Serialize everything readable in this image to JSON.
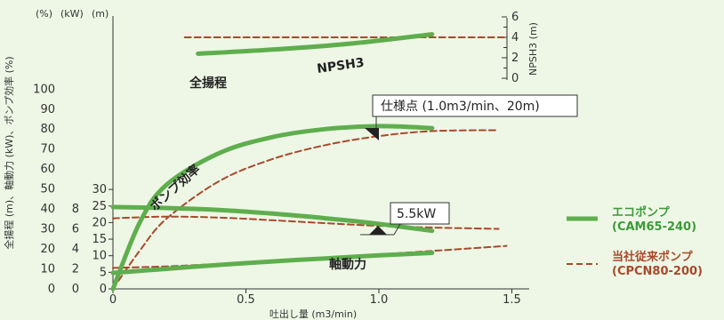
{
  "chart_data": {
    "type": "line",
    "xlabel": "吐出し量 (m3/min)",
    "x_ticks": [
      "0",
      "0.5",
      "1.0",
      "1.5"
    ],
    "xlim": [
      0,
      1.5
    ],
    "axis_units": {
      "pct": "(%)",
      "kw": "(kW)",
      "m": "(m)"
    },
    "y_axis_title": "全揚程 (m)、軸動力 (kW)、ポンプ効率 (%)",
    "y_pct_ticks": [
      "0",
      "10",
      "20",
      "30",
      "40",
      "50",
      "60",
      "70",
      "80",
      "90",
      "100"
    ],
    "y_kw_ticks": [
      "0",
      "2",
      "4",
      "6",
      "8"
    ],
    "y_m_ticks": [
      "0",
      "5",
      "10",
      "15",
      "20",
      "25",
      "30"
    ],
    "right_axis": {
      "label": "NPSH3 (m)",
      "ticks": [
        "0",
        "2",
        "4",
        "6"
      ]
    },
    "curve_labels": {
      "head": "全揚程",
      "efficiency": "ポンプ効率",
      "power": "軸動力",
      "npsh": "NPSH3"
    },
    "series": [
      {
        "name": "エコポンプ",
        "sub": "(CAM65-240)",
        "color": "#5fae4e",
        "style": "solid",
        "head_m": [
          [
            0,
            24.7
          ],
          [
            0.2,
            24.4
          ],
          [
            0.4,
            23.8
          ],
          [
            0.6,
            22.7
          ],
          [
            0.8,
            21.3
          ],
          [
            1.0,
            19.6
          ],
          [
            1.2,
            17.5
          ]
        ],
        "efficiency_pct": [
          [
            0,
            0
          ],
          [
            0.1,
            33
          ],
          [
            0.2,
            52
          ],
          [
            0.4,
            68
          ],
          [
            0.6,
            76
          ],
          [
            0.8,
            80
          ],
          [
            1.0,
            81.5
          ],
          [
            1.2,
            80.5
          ]
        ],
        "power_kw": [
          [
            0,
            1.6
          ],
          [
            0.2,
            2.0
          ],
          [
            0.4,
            2.4
          ],
          [
            0.6,
            2.75
          ],
          [
            0.8,
            3.05
          ],
          [
            1.0,
            3.35
          ],
          [
            1.2,
            3.6
          ]
        ],
        "npsh3_m": [
          [
            0.32,
            2.4
          ],
          [
            0.6,
            2.8
          ],
          [
            0.9,
            3.4
          ],
          [
            1.2,
            4.3
          ]
        ]
      },
      {
        "name": "当社従来ポンプ",
        "sub": "(CPCN80-200)",
        "color": "#a8492b",
        "style": "dashed",
        "head_m": [
          [
            0,
            21.3
          ],
          [
            0.2,
            21.8
          ],
          [
            0.4,
            21.5
          ],
          [
            0.6,
            20.7
          ],
          [
            0.8,
            19.8
          ],
          [
            1.0,
            19.0
          ],
          [
            1.2,
            18.5
          ],
          [
            1.45,
            18.1
          ]
        ],
        "efficiency_pct": [
          [
            0,
            0
          ],
          [
            0.1,
            19
          ],
          [
            0.2,
            35
          ],
          [
            0.4,
            54
          ],
          [
            0.6,
            65
          ],
          [
            0.8,
            72
          ],
          [
            1.0,
            76.5
          ],
          [
            1.2,
            79
          ],
          [
            1.45,
            79.5
          ]
        ],
        "power_kw": [
          [
            0,
            2.1
          ],
          [
            0.2,
            2.25
          ],
          [
            0.4,
            2.5
          ],
          [
            0.6,
            2.8
          ],
          [
            0.8,
            3.15
          ],
          [
            1.0,
            3.45
          ],
          [
            1.2,
            3.8
          ],
          [
            1.48,
            4.3
          ]
        ],
        "npsh3_m": [
          [
            0.27,
            4.0
          ],
          [
            1.48,
            4.0
          ]
        ]
      }
    ],
    "annotations": [
      {
        "text": "仕様点 (1.0m3/min、20m)",
        "x": 1.0,
        "y_m": 20
      },
      {
        "text": "5.5kW",
        "x": 0.98,
        "y_kw": 5.5
      }
    ]
  }
}
